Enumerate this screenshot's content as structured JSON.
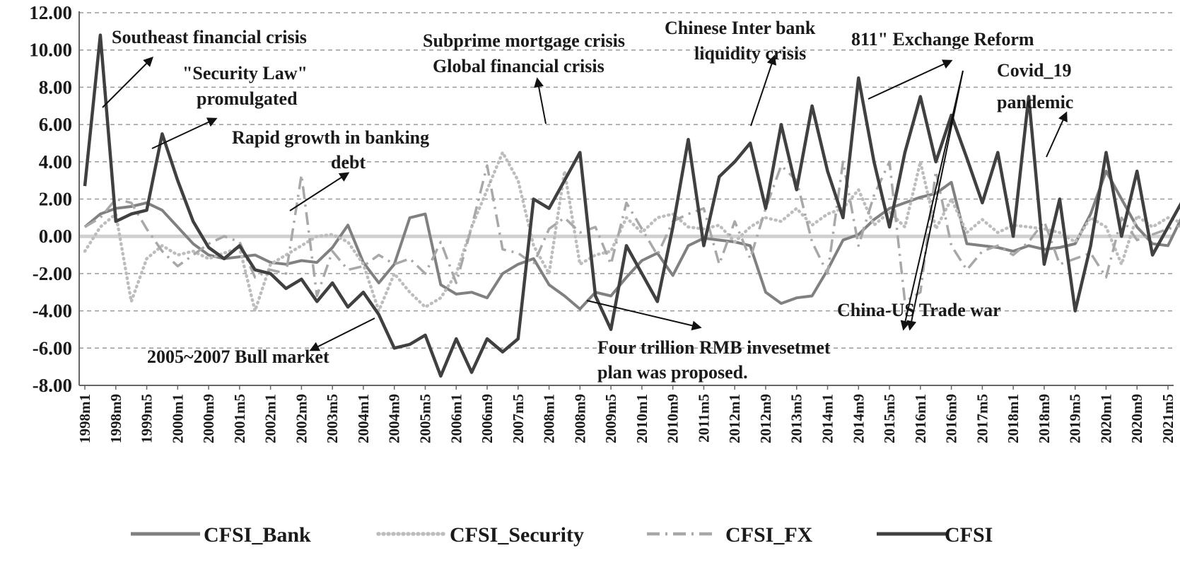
{
  "chart_data": {
    "type": "line",
    "title": "",
    "xlabel": "",
    "ylabel": "",
    "ylim": [
      -8,
      12
    ],
    "yticks": [
      "12.00",
      "10.00",
      "8.00",
      "6.00",
      "4.00",
      "2.00",
      "0.00",
      "-2.00",
      "-4.00",
      "-6.00",
      "-8.00"
    ],
    "x_labels": [
      "1998m1",
      "1998m9",
      "1999m5",
      "2000m1",
      "2000m9",
      "2001m5",
      "2002m1",
      "2002m9",
      "2003m5",
      "2004m1",
      "2004m9",
      "2005m5",
      "2006m1",
      "2006m9",
      "2007m5",
      "2008m1",
      "2008m9",
      "2009m5",
      "2010m1",
      "2010m9",
      "2011m5",
      "2012m1",
      "2012m9",
      "2013m5",
      "2014m1",
      "2014m9",
      "2015m5",
      "2016m1",
      "2016m9",
      "2017m5",
      "2018m1",
      "2018m9",
      "2019m5",
      "2020m1",
      "2020m9",
      "2021m5"
    ],
    "x_label_step_months": 8,
    "knots_every_months": 4,
    "series": [
      {
        "name": "CFSI_Bank",
        "color": "#808080",
        "style": "solid",
        "values": [
          0.5,
          1.2,
          1.5,
          1.6,
          1.8,
          1.4,
          0.5,
          -0.4,
          -1.0,
          -1.2,
          -1.1,
          -1.0,
          -1.4,
          -1.5,
          -1.3,
          -1.4,
          -0.6,
          0.6,
          -1.4,
          -2.5,
          -1.5,
          1.0,
          1.2,
          -2.6,
          -3.1,
          -3.0,
          -3.3,
          -2.0,
          -1.5,
          -1.2,
          -2.6,
          -3.2,
          -3.9,
          -3.0,
          -3.2,
          -2.2,
          -1.3,
          -0.9,
          -2.1,
          -0.5,
          -0.1,
          -0.2,
          -0.3,
          -0.5,
          -3.0,
          -3.6,
          -3.3,
          -3.2,
          -1.8,
          -0.2,
          0.1,
          0.9,
          1.5,
          1.8,
          2.1,
          2.3,
          2.9,
          -0.4,
          -0.5,
          -0.6,
          -0.8,
          -0.5,
          -0.7,
          -0.6,
          -0.4,
          1.2,
          3.5,
          2.0,
          0.5,
          -0.4,
          -0.5,
          1.2
        ]
      },
      {
        "name": "CFSI_Security",
        "color": "#bdbdbd",
        "style": "dotted",
        "values": [
          -0.8,
          0.5,
          1.2,
          -3.5,
          -1.2,
          -0.5,
          -1.0,
          -0.8,
          -1.2,
          -0.9,
          -0.6,
          -4.0,
          -1.5,
          -1.0,
          -0.5,
          0.0,
          0.1,
          -0.3,
          -1.5,
          -4.0,
          -2.0,
          -3.0,
          -3.8,
          -3.3,
          -2.0,
          0.5,
          2.5,
          4.5,
          3.0,
          -0.5,
          -2.0,
          3.5,
          -1.5,
          -1.0,
          -0.8,
          1.0,
          0.2,
          1.0,
          1.2,
          0.5,
          0.4,
          0.6,
          -0.3,
          0.5,
          1.0,
          0.8,
          1.5,
          0.6,
          1.2,
          1.5,
          2.5,
          0.6,
          1.3,
          0.5,
          4.0,
          0.4,
          2.0,
          0.2,
          0.9,
          0.2,
          0.6,
          0.5,
          0.4,
          0.2,
          -0.3,
          1.0,
          0.5,
          -1.5,
          1.1,
          0.5,
          1.0,
          0.7
        ]
      },
      {
        "name": "CFSI_FX",
        "color": "#a8a8a8",
        "style": "dashdot",
        "values": [
          0.5,
          1.0,
          2.0,
          1.8,
          0.4,
          -0.8,
          -1.6,
          -1.0,
          -0.4,
          0.0,
          -0.3,
          -2.2,
          -1.8,
          -2.0,
          3.3,
          -3.2,
          -0.8,
          -1.8,
          -1.6,
          -1.0,
          -1.5,
          -1.2,
          -2.0,
          -0.3,
          -2.5,
          0.5,
          3.8,
          -0.7,
          -0.9,
          -1.5,
          0.4,
          1.0,
          0.2,
          0.5,
          -1.5,
          1.8,
          0.4,
          -1.0,
          0.8,
          1.2,
          1.5,
          -1.5,
          0.8,
          -1.2,
          1.5,
          3.8,
          3.0,
          -0.3,
          -2.0,
          4.0,
          -0.5,
          2.2,
          4.0,
          -3.5,
          -3.0,
          3.5,
          -0.5,
          -1.8,
          -0.8,
          -0.5,
          -1.0,
          -0.3,
          0.8,
          -1.5,
          -1.2,
          -0.9,
          -2.2,
          1.0,
          -0.2,
          0.1,
          0.4,
          0.6
        ]
      },
      {
        "name": "CFSI",
        "color": "#404040",
        "style": "solid",
        "values": [
          2.7,
          10.8,
          0.8,
          1.2,
          1.4,
          5.5,
          3.0,
          0.8,
          -0.6,
          -1.2,
          -0.5,
          -1.8,
          -2.0,
          -2.8,
          -2.3,
          -3.5,
          -2.5,
          -3.8,
          -3.0,
          -4.2,
          -6.0,
          -5.8,
          -5.3,
          -7.5,
          -5.5,
          -7.3,
          -5.5,
          -6.2,
          -5.5,
          2.0,
          1.5,
          3.0,
          4.5,
          -3.2,
          -5.0,
          -0.5,
          -2.0,
          -3.5,
          0.5,
          5.2,
          -0.5,
          3.2,
          4.0,
          5.0,
          1.5,
          6.0,
          2.5,
          7.0,
          3.5,
          1.0,
          8.5,
          4.0,
          0.5,
          4.5,
          7.5,
          4.0,
          6.5,
          4.2,
          1.8,
          4.5,
          0.0,
          7.5,
          -1.5,
          2.0,
          -4.0,
          -0.5,
          4.5,
          0.0,
          3.5,
          -1.0,
          0.5,
          2.0
        ]
      }
    ],
    "annotations": [
      {
        "text": "Southeast financial crisis"
      },
      {
        "text": "\"Security Law\""
      },
      {
        "text": "promulgated"
      },
      {
        "text": "Rapid growth in banking"
      },
      {
        "text": "debt"
      },
      {
        "text": "2005~2007 Bull market"
      },
      {
        "text": "Subprime mortgage crisis"
      },
      {
        "text": "Global financial crisis"
      },
      {
        "text": "Chinese Inter bank"
      },
      {
        "text": "liquidity crisis"
      },
      {
        "text": "811\" Exchange Reform"
      },
      {
        "text": "Covid_19"
      },
      {
        "text": "pandemic"
      },
      {
        "text": "Four trillion RMB invesetmet"
      },
      {
        "text": "plan was proposed."
      },
      {
        "text": "China-US Trade war"
      }
    ],
    "legend_position": "bottom",
    "grid": true
  }
}
